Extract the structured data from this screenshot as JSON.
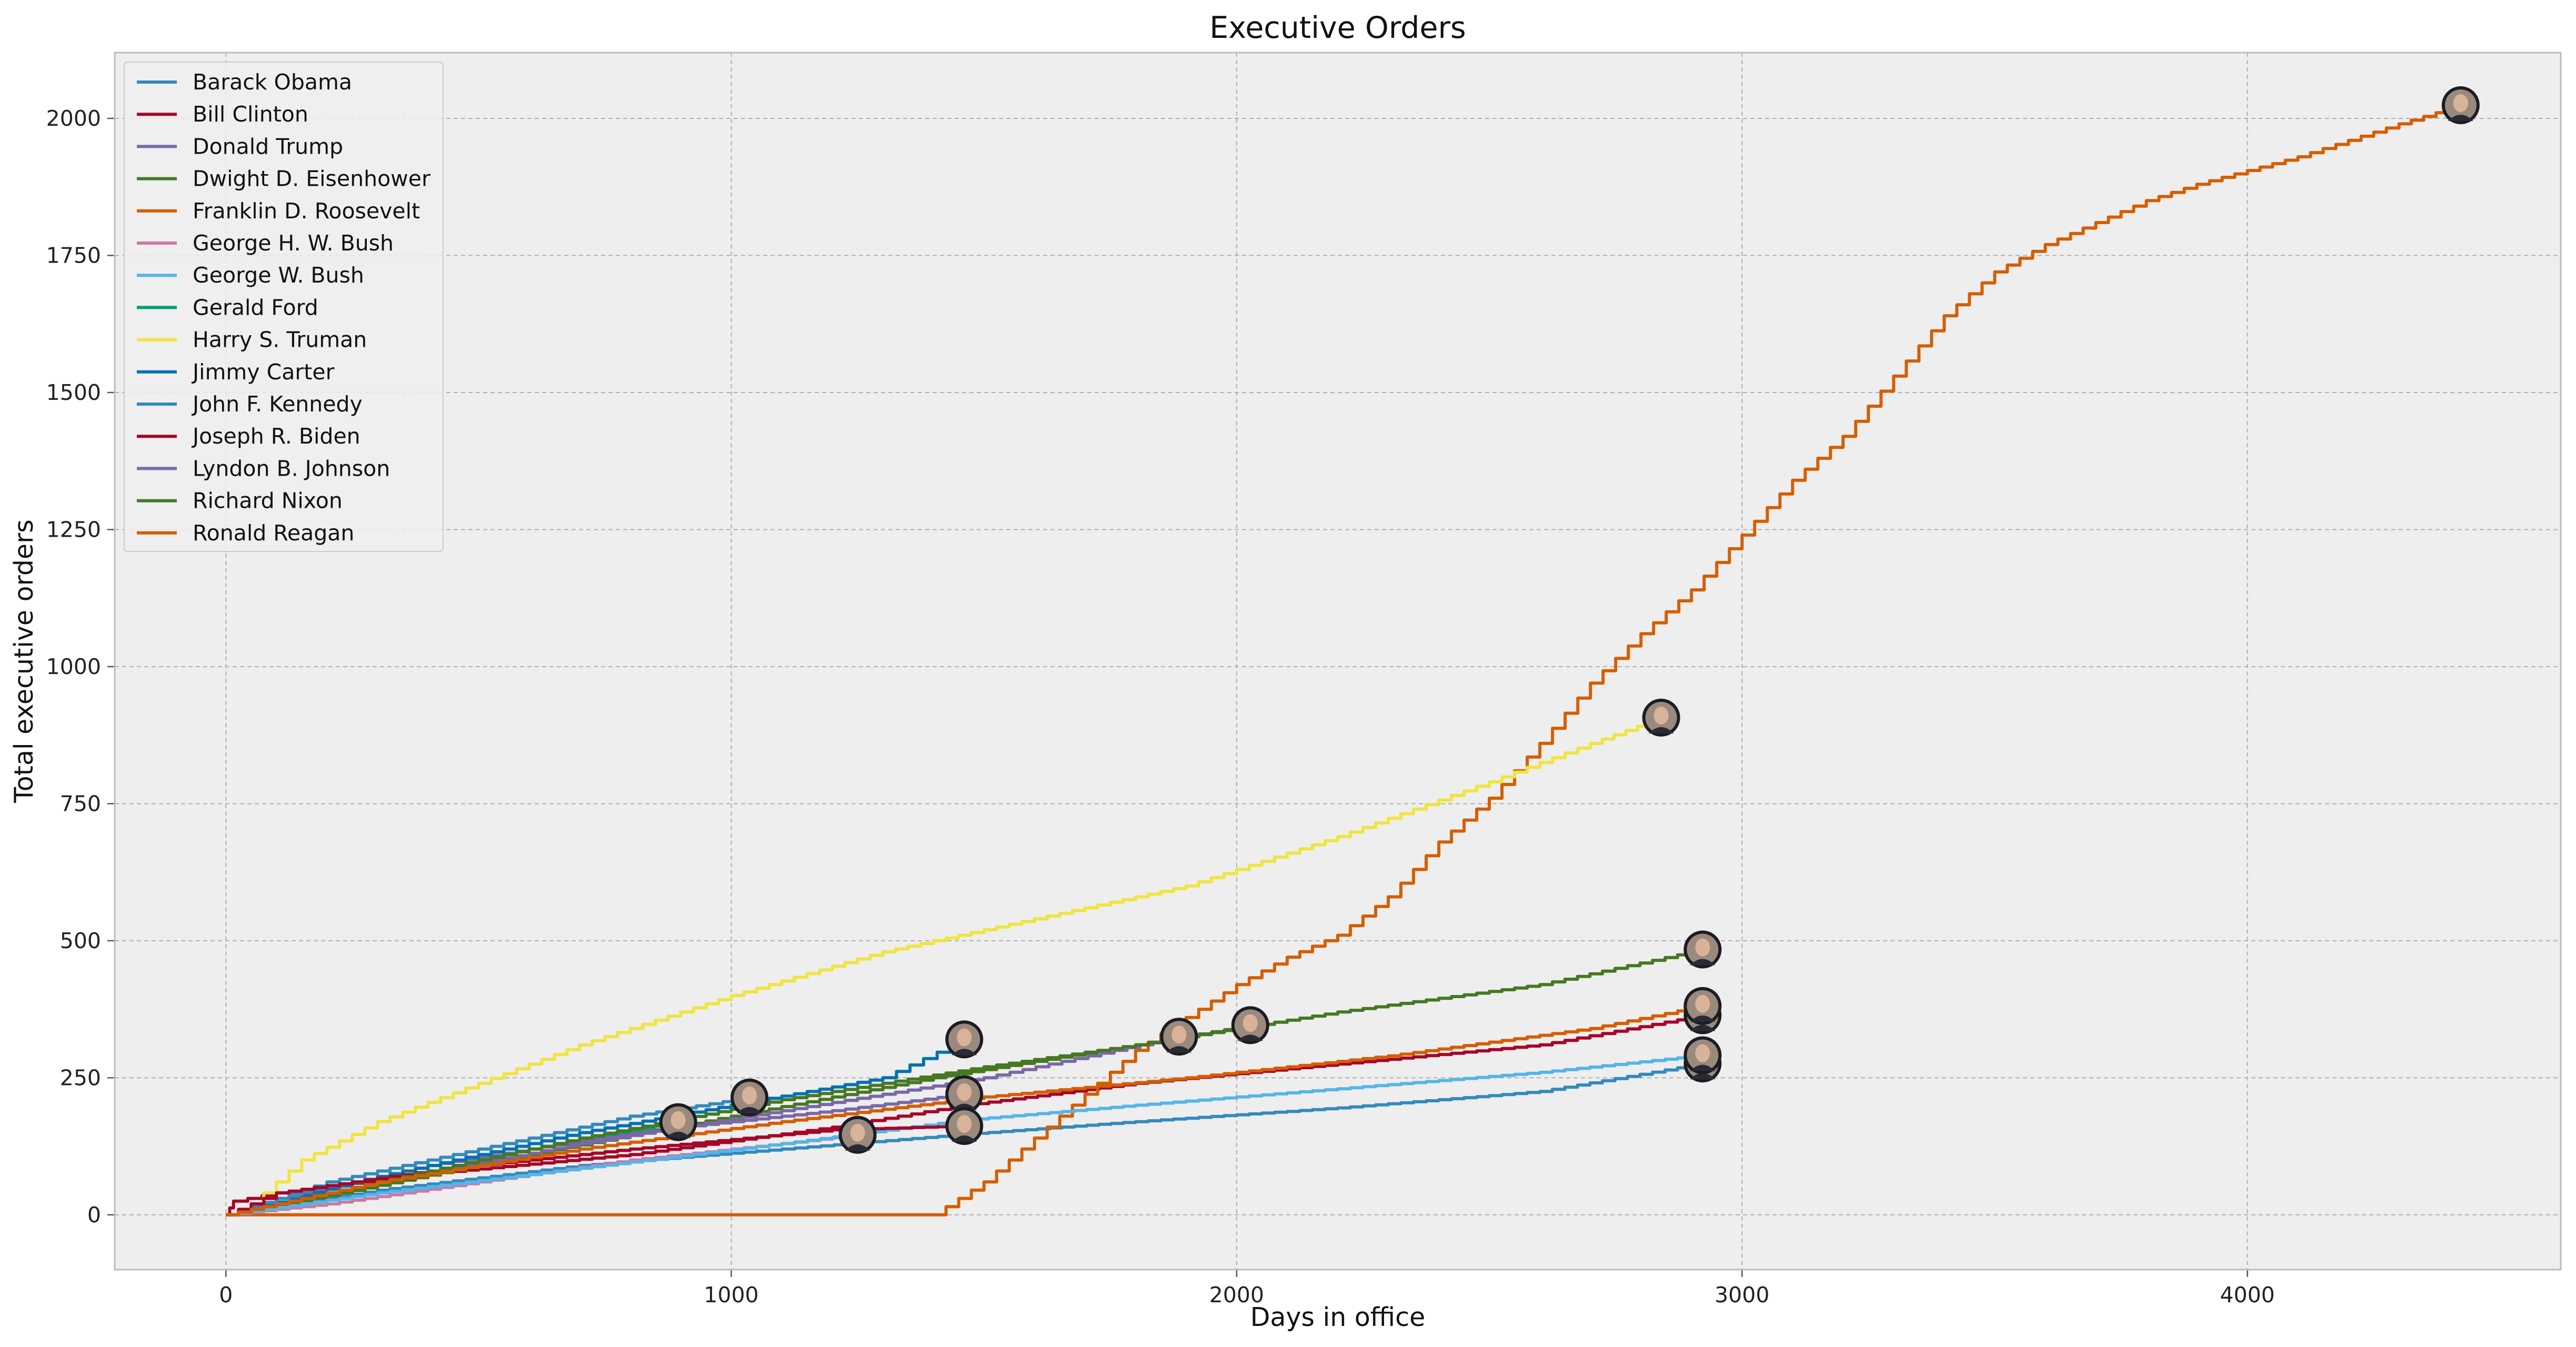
{
  "chart_data": {
    "type": "line",
    "title": "Executive Orders",
    "xlabel": "Days in office",
    "ylabel": "Total executive orders",
    "xlim": [
      -220,
      4620
    ],
    "ylim": [
      -100,
      2120
    ],
    "xticks": [
      0,
      1000,
      2000,
      3000,
      4000
    ],
    "yticks": [
      0,
      250,
      500,
      750,
      1000,
      1250,
      1500,
      1750,
      2000
    ],
    "grid": true,
    "legend_position": "top-left",
    "colors": {
      "background": "#eeeeee",
      "grid": "#b0b0b0",
      "axes_edge": "#bcbcbc"
    },
    "series": [
      {
        "name": "Barack Obama",
        "color": "#348abd",
        "points": [
          [
            0,
            0
          ],
          [
            300,
            45
          ],
          [
            700,
            90
          ],
          [
            1100,
            120
          ],
          [
            1461,
            147
          ],
          [
            1800,
            170
          ],
          [
            2200,
            195
          ],
          [
            2600,
            225
          ],
          [
            2922,
            276
          ]
        ],
        "end_marker": "portrait"
      },
      {
        "name": "Bill Clinton",
        "color": "#a60628",
        "points": [
          [
            0,
            0
          ],
          [
            15,
            25
          ],
          [
            100,
            40
          ],
          [
            400,
            75
          ],
          [
            800,
            110
          ],
          [
            1200,
            160
          ],
          [
            1461,
            200
          ],
          [
            1800,
            240
          ],
          [
            2200,
            275
          ],
          [
            2600,
            310
          ],
          [
            2922,
            364
          ]
        ],
        "end_marker": "portrait"
      },
      {
        "name": "Donald Trump",
        "color": "#7a68a6",
        "points": [
          [
            0,
            0
          ],
          [
            100,
            30
          ],
          [
            400,
            90
          ],
          [
            800,
            150
          ],
          [
            1200,
            190
          ],
          [
            1461,
            220
          ]
        ],
        "end_marker": "portrait"
      },
      {
        "name": "Dwight D. Eisenhower",
        "color": "#467821",
        "points": [
          [
            0,
            0
          ],
          [
            200,
            35
          ],
          [
            600,
            110
          ],
          [
            1000,
            180
          ],
          [
            1400,
            250
          ],
          [
            1800,
            310
          ],
          [
            2200,
            370
          ],
          [
            2600,
            420
          ],
          [
            2922,
            484
          ]
        ],
        "end_marker": "portrait"
      },
      {
        "name": "Franklin D. Roosevelt",
        "color": "#d55e00",
        "points": [
          [
            0,
            0
          ],
          [
            1400,
            0
          ],
          [
            1500,
            60
          ],
          [
            1600,
            140
          ],
          [
            1700,
            220
          ],
          [
            1800,
            300
          ],
          [
            1900,
            360
          ],
          [
            2000,
            420
          ],
          [
            2100,
            470
          ],
          [
            2200,
            510
          ],
          [
            2300,
            580
          ],
          [
            2400,
            680
          ],
          [
            2500,
            760
          ],
          [
            2600,
            860
          ],
          [
            2700,
            970
          ],
          [
            2800,
            1060
          ],
          [
            2900,
            1140
          ],
          [
            3000,
            1240
          ],
          [
            3100,
            1340
          ],
          [
            3200,
            1420
          ],
          [
            3300,
            1530
          ],
          [
            3400,
            1640
          ],
          [
            3500,
            1720
          ],
          [
            3600,
            1770
          ],
          [
            3700,
            1810
          ],
          [
            3800,
            1850
          ],
          [
            3900,
            1880
          ],
          [
            4000,
            1905
          ],
          [
            4100,
            1930
          ],
          [
            4200,
            1960
          ],
          [
            4300,
            1990
          ],
          [
            4422,
            2024
          ]
        ],
        "end_marker": "portrait"
      },
      {
        "name": "George H. W. Bush",
        "color": "#cc79a7",
        "points": [
          [
            0,
            0
          ],
          [
            200,
            20
          ],
          [
            500,
            60
          ],
          [
            800,
            100
          ],
          [
            1100,
            130
          ],
          [
            1250,
            146
          ]
        ],
        "end_marker": "portrait"
      },
      {
        "name": "George W. Bush",
        "color": "#56b4e9",
        "points": [
          [
            0,
            0
          ],
          [
            300,
            40
          ],
          [
            700,
            85
          ],
          [
            1100,
            130
          ],
          [
            1461,
            173
          ],
          [
            1800,
            200
          ],
          [
            2200,
            230
          ],
          [
            2600,
            260
          ],
          [
            2922,
            291
          ]
        ],
        "end_marker": "portrait"
      },
      {
        "name": "Gerald Ford",
        "color": "#009e73",
        "points": [
          [
            0,
            0
          ],
          [
            200,
            40
          ],
          [
            500,
            100
          ],
          [
            700,
            140
          ],
          [
            895,
            169
          ]
        ],
        "end_marker": "portrait"
      },
      {
        "name": "Harry S. Truman",
        "color": "#f0e442",
        "points": [
          [
            0,
            0
          ],
          [
            50,
            20
          ],
          [
            150,
            100
          ],
          [
            300,
            170
          ],
          [
            500,
            240
          ],
          [
            700,
            310
          ],
          [
            1000,
            400
          ],
          [
            1300,
            480
          ],
          [
            1600,
            540
          ],
          [
            1900,
            600
          ],
          [
            2200,
            690
          ],
          [
            2500,
            790
          ],
          [
            2700,
            860
          ],
          [
            2840,
            907
          ]
        ],
        "end_marker": "portrait"
      },
      {
        "name": "Jimmy Carter",
        "color": "#0072b2",
        "points": [
          [
            0,
            0
          ],
          [
            300,
            70
          ],
          [
            700,
            150
          ],
          [
            1000,
            200
          ],
          [
            1300,
            250
          ],
          [
            1461,
            320
          ]
        ],
        "end_marker": "portrait"
      },
      {
        "name": "John F. Kennedy",
        "color": "#348abd",
        "points": [
          [
            0,
            0
          ],
          [
            200,
            60
          ],
          [
            500,
            120
          ],
          [
            800,
            180
          ],
          [
            1036,
            214
          ]
        ],
        "end_marker": "portrait"
      },
      {
        "name": "Joseph R. Biden",
        "color": "#a60628",
        "points": [
          [
            0,
            0
          ],
          [
            100,
            40
          ],
          [
            400,
            80
          ],
          [
            800,
            120
          ],
          [
            1200,
            155
          ],
          [
            1461,
            162
          ]
        ],
        "end_marker": "portrait"
      },
      {
        "name": "Lyndon B. Johnson",
        "color": "#7a68a6",
        "points": [
          [
            0,
            0
          ],
          [
            300,
            60
          ],
          [
            700,
            130
          ],
          [
            1100,
            190
          ],
          [
            1500,
            250
          ],
          [
            1886,
            325
          ]
        ],
        "end_marker": "portrait"
      },
      {
        "name": "Richard Nixon",
        "color": "#467821",
        "points": [
          [
            0,
            0
          ],
          [
            300,
            60
          ],
          [
            700,
            140
          ],
          [
            1100,
            210
          ],
          [
            1500,
            270
          ],
          [
            1800,
            310
          ],
          [
            2027,
            346
          ]
        ],
        "end_marker": "portrait"
      },
      {
        "name": "Ronald Reagan",
        "color": "#d55e00",
        "points": [
          [
            0,
            0
          ],
          [
            300,
            60
          ],
          [
            700,
            120
          ],
          [
            1100,
            170
          ],
          [
            1500,
            215
          ],
          [
            1900,
            250
          ],
          [
            2300,
            290
          ],
          [
            2700,
            340
          ],
          [
            2922,
            381
          ]
        ],
        "end_marker": "portrait"
      }
    ]
  }
}
